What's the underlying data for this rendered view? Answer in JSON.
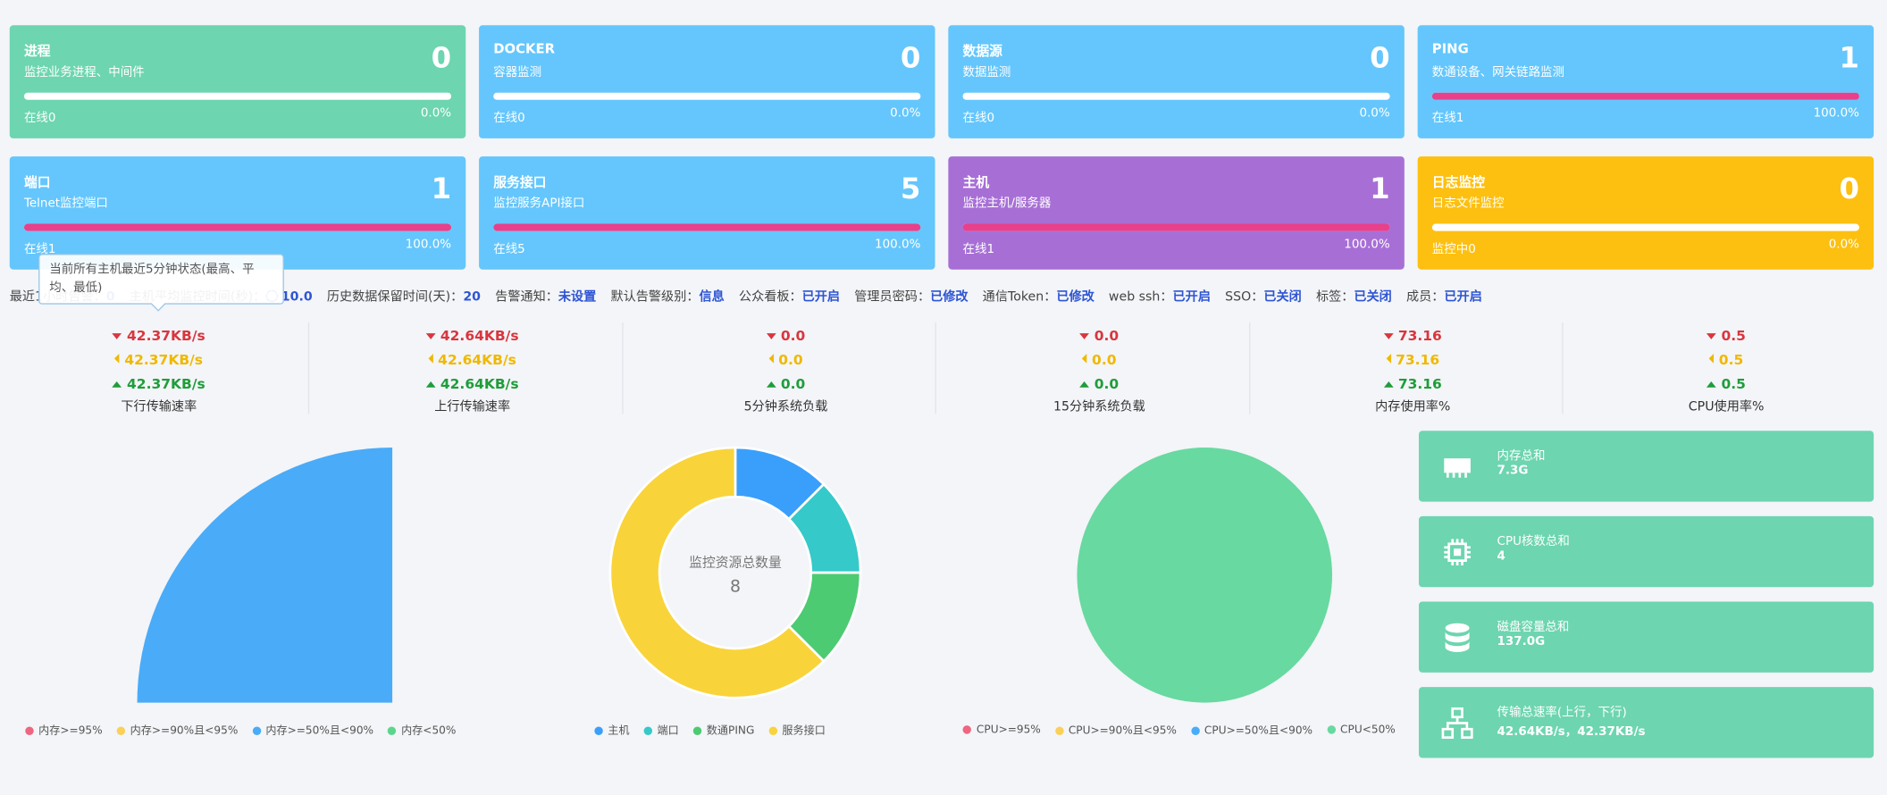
{
  "cards": [
    {
      "title": "进程",
      "subtitle": "监控业务进程、中间件",
      "count": 0,
      "online": "在线0",
      "percent": 0,
      "percent_label": "0.0%",
      "color": "#6dd5b0"
    },
    {
      "title": "DOCKER",
      "subtitle": "容器监测",
      "count": 0,
      "online": "在线0",
      "percent": 0,
      "percent_label": "0.0%",
      "color": "#64c6fc"
    },
    {
      "title": "数据源",
      "subtitle": "数据监测",
      "count": 0,
      "online": "在线0",
      "percent": 0,
      "percent_label": "0.0%",
      "color": "#64c6fc"
    },
    {
      "title": "PING",
      "subtitle": "数通设备、网关链路监测",
      "count": 1,
      "online": "在线1",
      "percent": 100,
      "percent_label": "100.0%",
      "color": "#64c6fc"
    },
    {
      "title": "端口",
      "subtitle": "Telnet监控端口",
      "count": 1,
      "online": "在线1",
      "percent": 100,
      "percent_label": "100.0%",
      "color": "#64c6fc"
    },
    {
      "title": "服务接口",
      "subtitle": "监控服务API接口",
      "count": 5,
      "online": "在线5",
      "percent": 100,
      "percent_label": "100.0%",
      "color": "#64c6fc"
    },
    {
      "title": "主机",
      "subtitle": "监控主机/服务器",
      "count": 1,
      "online": "在线1",
      "percent": 100,
      "percent_label": "100.0%",
      "color": "#a76fd6"
    },
    {
      "title": "日志监控",
      "subtitle": "日志文件监控",
      "count": 0,
      "online": "监控中0",
      "percent": 0,
      "percent_label": "0.0%",
      "color": "#fdc010"
    }
  ],
  "status": [
    {
      "label": "最近1小时告警：",
      "value": "0"
    },
    {
      "label": "主机平均监控时间(秒)：",
      "value": "10.0"
    },
    {
      "label": "历史数据保留时间(天)：",
      "value": "20"
    },
    {
      "label": "告警通知：",
      "value": "未设置"
    },
    {
      "label": "默认告警级别：",
      "value": "信息"
    },
    {
      "label": "公众看板：",
      "value": "已开启"
    },
    {
      "label": "管理员密码：",
      "value": "已修改"
    },
    {
      "label": "通信Token：",
      "value": "已修改"
    },
    {
      "label": "web ssh：",
      "value": "已开启"
    },
    {
      "label": "SSO：",
      "value": "已关闭"
    },
    {
      "label": "标签：",
      "value": "已关闭"
    },
    {
      "label": "成员：",
      "value": "已开启"
    }
  ],
  "tooltip": "当前所有主机最近5分钟状态(最高、平均、最低)",
  "metrics": [
    {
      "max": "42.37KB/s",
      "avg": "42.37KB/s",
      "min": "42.37KB/s",
      "label": "下行传输速率"
    },
    {
      "max": "42.64KB/s",
      "avg": "42.64KB/s",
      "min": "42.64KB/s",
      "label": "上行传输速率"
    },
    {
      "max": "0.0",
      "avg": "0.0",
      "min": "0.0",
      "label": "5分钟系统负载"
    },
    {
      "max": "0.0",
      "avg": "0.0",
      "min": "0.0",
      "label": "15分钟系统负载"
    },
    {
      "max": "73.16",
      "avg": "73.16",
      "min": "73.16",
      "label": "内存使用率%"
    },
    {
      "max": "0.5",
      "avg": "0.5",
      "min": "0.5",
      "label": "CPU使用率%"
    }
  ],
  "chart_data": [
    {
      "type": "rose",
      "categories": [
        "内存>=95%",
        "内存>=90%且<95%",
        "内存>=50%且<90%",
        "内存<50%"
      ],
      "values": [
        0,
        0,
        1,
        0
      ],
      "colors": [
        "#ee6680",
        "#fad058",
        "#4aabf8",
        "#5cd68e"
      ]
    },
    {
      "type": "donut",
      "title": "监控资源总数量",
      "total": 8,
      "categories": [
        "主机",
        "端口",
        "数通PING",
        "服务接口"
      ],
      "values": [
        1,
        1,
        1,
        5
      ],
      "colors": [
        "#3a9ffb",
        "#35c9c9",
        "#4ccb72",
        "#f9d33a"
      ]
    },
    {
      "type": "pie",
      "categories": [
        "CPU>=95%",
        "CPU>=90%且<95%",
        "CPU>=50%且<90%",
        "CPU<50%"
      ],
      "values": [
        0,
        0,
        0,
        1
      ],
      "colors": [
        "#ee6680",
        "#fad058",
        "#4aabf8",
        "#68d9a0"
      ]
    }
  ],
  "summary": [
    {
      "title": "内存总和",
      "value": "7.3G"
    },
    {
      "title": "CPU核数总和",
      "value": "4"
    },
    {
      "title": "磁盘容量总和",
      "value": "137.0G"
    },
    {
      "title": "传输总速率(上行，下行)",
      "value": "42.64KB/s，42.37KB/s"
    }
  ]
}
